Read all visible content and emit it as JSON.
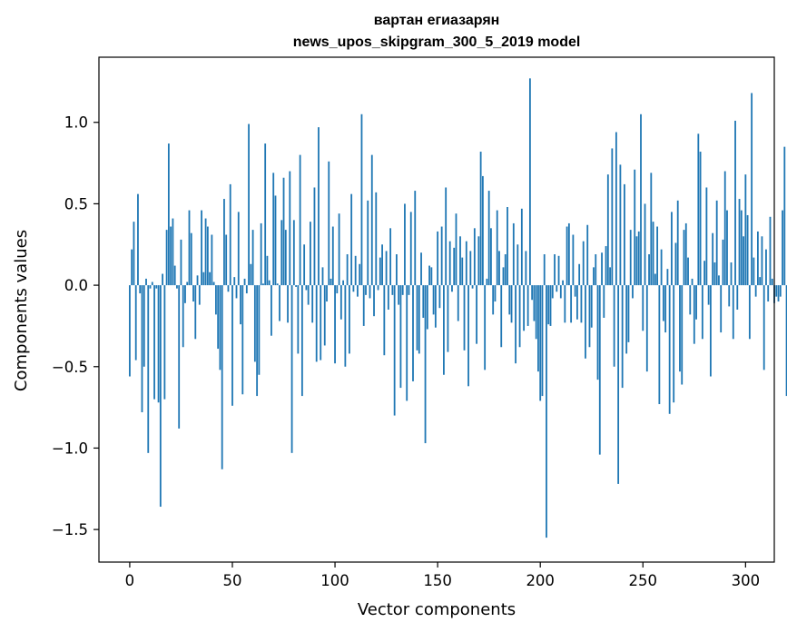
{
  "chart_data": {
    "type": "bar",
    "title_lines": [
      "вартан егиазарян",
      "news_upos_skipgram_300_5_2019 model"
    ],
    "xlabel": "Vector components",
    "ylabel": "Components values",
    "xlim": [
      -15,
      314
    ],
    "ylim": [
      -1.7,
      1.4
    ],
    "xticks": [
      0,
      50,
      100,
      150,
      200,
      250,
      300
    ],
    "yticks": [
      -1.5,
      -1.0,
      -0.5,
      0.0,
      0.5,
      1.0
    ],
    "ytick_labels": [
      "−1.5",
      "−1.0",
      "−0.5",
      "0.0",
      "0.5",
      "1.0"
    ],
    "bar_color": "#1f77b4",
    "grid": false,
    "legend": "none",
    "x_start": 0,
    "values": [
      -0.56,
      0.22,
      0.39,
      -0.46,
      0.56,
      -0.05,
      -0.78,
      -0.5,
      0.04,
      -1.03,
      -0.02,
      0.02,
      -0.7,
      -0.02,
      -0.72,
      -1.36,
      0.07,
      -0.7,
      0.34,
      0.87,
      0.36,
      0.41,
      0.12,
      -0.02,
      -0.88,
      0.28,
      -0.38,
      -0.11,
      0.02,
      0.46,
      0.32,
      -0.1,
      -0.33,
      0.06,
      -0.12,
      0.46,
      0.08,
      0.41,
      0.36,
      0.08,
      0.31,
      0.02,
      -0.18,
      -0.39,
      -0.52,
      -1.13,
      0.53,
      0.31,
      -0.04,
      0.62,
      -0.74,
      0.05,
      -0.08,
      0.45,
      -0.24,
      -0.67,
      0.04,
      -0.05,
      0.99,
      0.13,
      0.34,
      -0.47,
      -0.68,
      -0.55,
      0.38,
      0.01,
      0.87,
      0.18,
      0.03,
      -0.31,
      0.69,
      0.55,
      0.01,
      -0.22,
      0.4,
      0.66,
      0.34,
      -0.23,
      0.7,
      -1.03,
      0.4,
      -0.01,
      -0.42,
      0.8,
      -0.68,
      0.25,
      -0.03,
      -0.12,
      0.39,
      -0.23,
      0.6,
      -0.47,
      0.97,
      -0.46,
      0.11,
      -0.37,
      -0.1,
      0.76,
      0.04,
      0.36,
      -0.48,
      -0.05,
      0.44,
      -0.21,
      0.03,
      -0.5,
      0.19,
      -0.42,
      0.56,
      -0.04,
      0.18,
      -0.07,
      0.13,
      1.05,
      -0.25,
      -0.06,
      0.52,
      -0.08,
      0.8,
      -0.19,
      0.57,
      -0.03,
      0.17,
      0.25,
      -0.43,
      0.21,
      -0.15,
      0.35,
      -0.06,
      -0.8,
      0.19,
      -0.12,
      -0.63,
      -0.06,
      0.5,
      -0.71,
      -0.06,
      0.45,
      -0.59,
      0.58,
      -0.4,
      -0.42,
      0.2,
      -0.2,
      -0.97,
      -0.27,
      0.12,
      0.11,
      -0.18,
      -0.26,
      0.33,
      -0.14,
      0.36,
      -0.55,
      0.6,
      -0.41,
      0.27,
      -0.04,
      0.23,
      0.44,
      -0.22,
      0.3,
      0.17,
      -0.4,
      0.27,
      -0.62,
      0.21,
      -0.02,
      0.35,
      -0.36,
      0.3,
      0.82,
      0.67,
      -0.52,
      0.04,
      0.58,
      0.35,
      -0.18,
      -0.1,
      0.46,
      0.21,
      -0.38,
      0.11,
      0.19,
      0.48,
      -0.18,
      -0.23,
      0.38,
      -0.48,
      0.25,
      -0.38,
      0.47,
      -0.28,
      0.21,
      -0.25,
      1.27,
      -0.09,
      -0.22,
      -0.33,
      -0.53,
      -0.71,
      -0.68,
      0.19,
      -1.55,
      -0.24,
      -0.25,
      -0.08,
      0.19,
      -0.04,
      0.18,
      -0.08,
      0.03,
      -0.23,
      0.36,
      0.38,
      -0.23,
      0.31,
      -0.07,
      -0.21,
      0.13,
      -0.23,
      0.27,
      -0.45,
      0.37,
      -0.38,
      -0.26,
      0.11,
      0.19,
      -0.58,
      -1.04,
      0.2,
      -0.2,
      0.24,
      0.68,
      0.11,
      0.84,
      -0.5,
      0.94,
      -1.22,
      0.74,
      -0.63,
      0.62,
      -0.42,
      -0.35,
      0.34,
      -0.08,
      0.71,
      0.3,
      0.33,
      1.05,
      -0.28,
      0.5,
      -0.53,
      0.19,
      0.69,
      0.39,
      0.07,
      0.36,
      -0.73,
      0.22,
      -0.22,
      -0.29,
      0.1,
      -0.79,
      0.45,
      -0.72,
      0.26,
      0.52,
      -0.53,
      -0.61,
      0.34,
      0.38,
      0.17,
      -0.18,
      0.04,
      -0.36,
      -0.21,
      0.93,
      0.82,
      -0.33,
      0.15,
      0.6,
      -0.12,
      -0.56,
      0.32,
      0.14,
      0.52,
      0.06,
      -0.29,
      0.28,
      0.7,
      0.46,
      -0.13,
      0.14,
      -0.33,
      1.01,
      -0.15,
      0.53,
      0.46,
      0.3,
      0.68,
      0.43,
      -0.33,
      1.18,
      0.17,
      -0.07,
      0.33,
      0.05,
      0.3,
      -0.52,
      0.22,
      -0.1,
      0.42,
      0.04,
      -0.11,
      -0.07,
      -0.1,
      -0.07,
      0.46,
      0.85,
      -0.68
    ]
  }
}
